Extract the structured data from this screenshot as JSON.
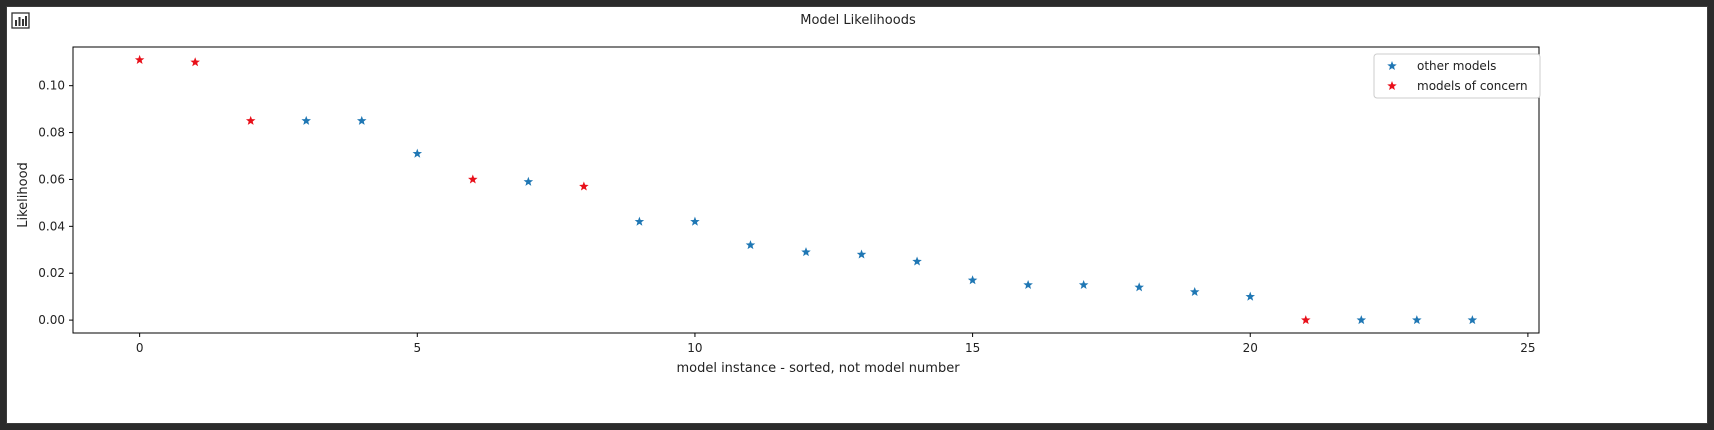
{
  "toolbar": {
    "icon": "bar-chart-icon"
  },
  "chart_data": {
    "type": "scatter",
    "title": "Model Likelihoods",
    "xlabel": "model instance - sorted, not model number",
    "ylabel": "Likelihood",
    "xlim": [
      -1.2,
      25.2
    ],
    "ylim": [
      -0.0055,
      0.1165
    ],
    "xticks": [
      0,
      5,
      10,
      15,
      20,
      25
    ],
    "xtick_labels": [
      "0",
      "5",
      "10",
      "15",
      "20",
      "25"
    ],
    "yticks": [
      0.0,
      0.02,
      0.04,
      0.06,
      0.08,
      0.1
    ],
    "ytick_labels": [
      "0.00",
      "0.02",
      "0.04",
      "0.06",
      "0.08",
      "0.10"
    ],
    "grid": false,
    "legend_position": "top-right",
    "marker": "star",
    "series": [
      {
        "name": "other models",
        "color": "#1f77b4",
        "x": [
          3,
          4,
          5,
          7,
          9,
          10,
          11,
          12,
          13,
          14,
          15,
          16,
          17,
          18,
          19,
          20,
          22,
          23,
          24
        ],
        "y": [
          0.085,
          0.085,
          0.071,
          0.059,
          0.042,
          0.042,
          0.032,
          0.029,
          0.028,
          0.025,
          0.017,
          0.015,
          0.015,
          0.014,
          0.012,
          0.01,
          0.0,
          0.0,
          0.0
        ]
      },
      {
        "name": "models of concern",
        "color": "#e8101a",
        "x": [
          0,
          1,
          2,
          6,
          8,
          21
        ],
        "y": [
          0.111,
          0.11,
          0.085,
          0.06,
          0.057,
          0.0
        ]
      }
    ]
  }
}
